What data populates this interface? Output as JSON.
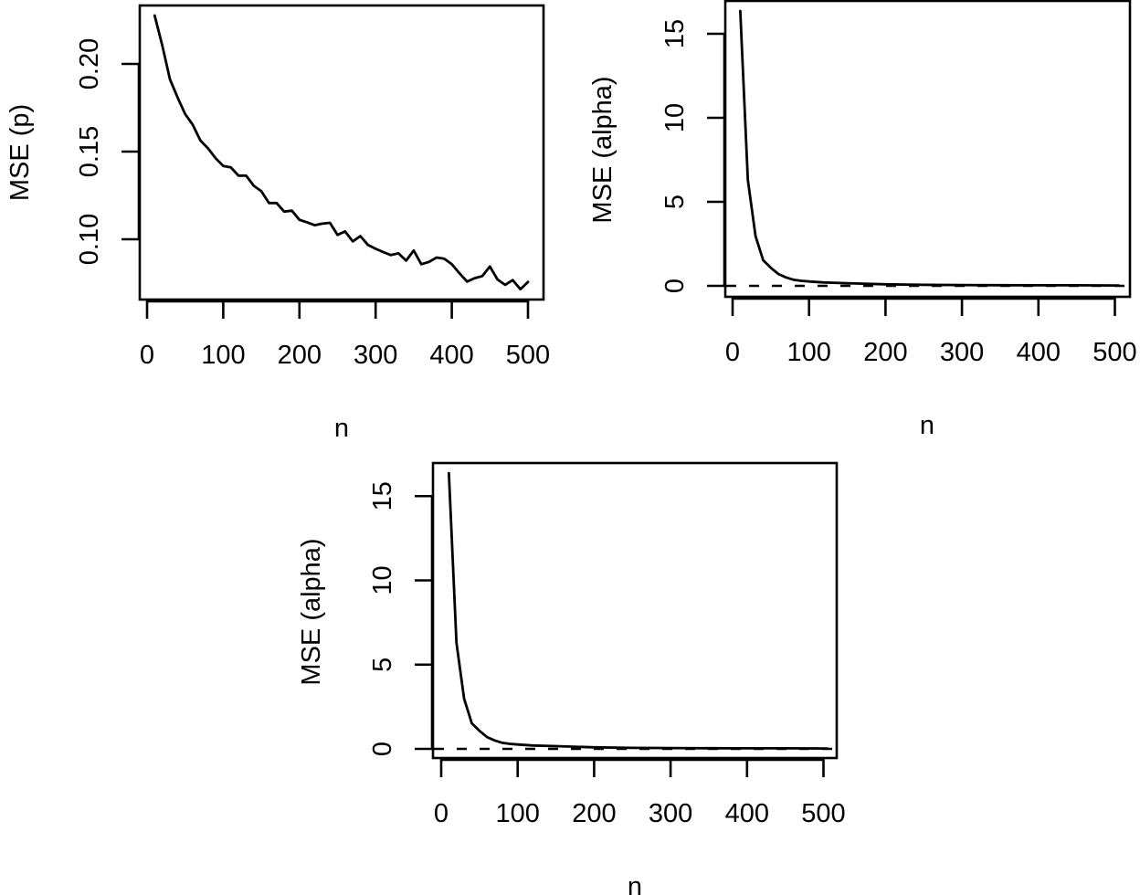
{
  "figure": {
    "panel_count": 3,
    "line_color": "#000000",
    "background": "#ffffff"
  },
  "chart_data": [
    {
      "type": "line",
      "panel": "top-left",
      "title": "",
      "xlabel": "n",
      "ylabel": "MSE (p)",
      "xlim": [
        0,
        500
      ],
      "ylim": [
        0.07,
        0.23
      ],
      "x_ticks": [
        0,
        100,
        200,
        300,
        400,
        500
      ],
      "x_tick_labels": [
        "0",
        "100",
        "200",
        "300",
        "400",
        "500"
      ],
      "y_ticks": [
        0.1,
        0.15,
        0.2
      ],
      "y_tick_labels": [
        "0.10",
        "0.15",
        "0.20"
      ],
      "grid": false,
      "legend": null,
      "reference_line": null,
      "series": [
        {
          "name": "MSE (p)",
          "style": "solid",
          "x": [
            10,
            20,
            30,
            40,
            50,
            60,
            70,
            80,
            90,
            100,
            110,
            120,
            130,
            140,
            150,
            160,
            170,
            180,
            190,
            200,
            210,
            220,
            230,
            240,
            250,
            260,
            270,
            280,
            290,
            300,
            310,
            320,
            330,
            340,
            350,
            360,
            370,
            380,
            390,
            400,
            410,
            420,
            430,
            440,
            450,
            460,
            470,
            480,
            490,
            500
          ],
          "values": [
            0.2276,
            0.2104,
            0.1913,
            0.1809,
            0.1714,
            0.1653,
            0.1563,
            0.1519,
            0.1462,
            0.1418,
            0.141,
            0.1363,
            0.1363,
            0.1305,
            0.1274,
            0.1207,
            0.1207,
            0.1158,
            0.1163,
            0.1111,
            0.1097,
            0.108,
            0.1089,
            0.1094,
            0.1025,
            0.1045,
            0.0988,
            0.1018,
            0.0967,
            0.0946,
            0.0927,
            0.091,
            0.092,
            0.0878,
            0.0936,
            0.0858,
            0.0871,
            0.0896,
            0.0889,
            0.0858,
            0.0807,
            0.0759,
            0.0778,
            0.079,
            0.0845,
            0.0771,
            0.074,
            0.0767,
            0.0715,
            0.0757
          ]
        }
      ]
    },
    {
      "type": "line",
      "panel": "top-right",
      "title": "",
      "xlabel": "n",
      "ylabel": "MSE (alpha)",
      "xlim": [
        0,
        505
      ],
      "ylim": [
        -0.6,
        17
      ],
      "x_ticks": [
        0,
        100,
        200,
        300,
        400,
        500
      ],
      "x_tick_labels": [
        "0",
        "100",
        "200",
        "300",
        "400",
        "500"
      ],
      "y_ticks": [
        0,
        5,
        10,
        15
      ],
      "y_tick_labels": [
        "0",
        "5",
        "10",
        "15"
      ],
      "grid": false,
      "legend": null,
      "reference_line": {
        "y": 0,
        "style": "dashed"
      },
      "series": [
        {
          "name": "MSE (alpha)",
          "style": "solid",
          "x": [
            10,
            20,
            30,
            40,
            50,
            60,
            70,
            80,
            90,
            100,
            120,
            150,
            200,
            250,
            300,
            350,
            400,
            450,
            505
          ],
          "values": [
            16.36,
            6.3,
            2.97,
            1.52,
            1.07,
            0.7,
            0.5,
            0.36,
            0.3,
            0.26,
            0.2,
            0.16,
            0.09,
            0.06,
            0.05,
            0.04,
            0.03,
            0.03,
            0.02
          ]
        }
      ]
    },
    {
      "type": "line",
      "panel": "bottom-center",
      "title": "",
      "xlabel": "n",
      "ylabel": "MSE (alpha)",
      "xlim": [
        0,
        505
      ],
      "ylim": [
        -0.6,
        17
      ],
      "x_ticks": [
        0,
        100,
        200,
        300,
        400,
        500
      ],
      "x_tick_labels": [
        "0",
        "100",
        "200",
        "300",
        "400",
        "500"
      ],
      "y_ticks": [
        0,
        5,
        10,
        15
      ],
      "y_tick_labels": [
        "0",
        "5",
        "10",
        "15"
      ],
      "grid": false,
      "legend": null,
      "reference_line": {
        "y": 0,
        "style": "dashed"
      },
      "series": [
        {
          "name": "MSE (alpha)",
          "style": "solid",
          "x": [
            10,
            20,
            30,
            40,
            50,
            60,
            70,
            80,
            90,
            100,
            120,
            150,
            200,
            250,
            300,
            350,
            400,
            450,
            505
          ],
          "values": [
            16.36,
            6.3,
            2.97,
            1.52,
            1.07,
            0.7,
            0.5,
            0.36,
            0.3,
            0.26,
            0.2,
            0.16,
            0.09,
            0.06,
            0.05,
            0.04,
            0.03,
            0.03,
            0.02
          ]
        }
      ]
    }
  ]
}
